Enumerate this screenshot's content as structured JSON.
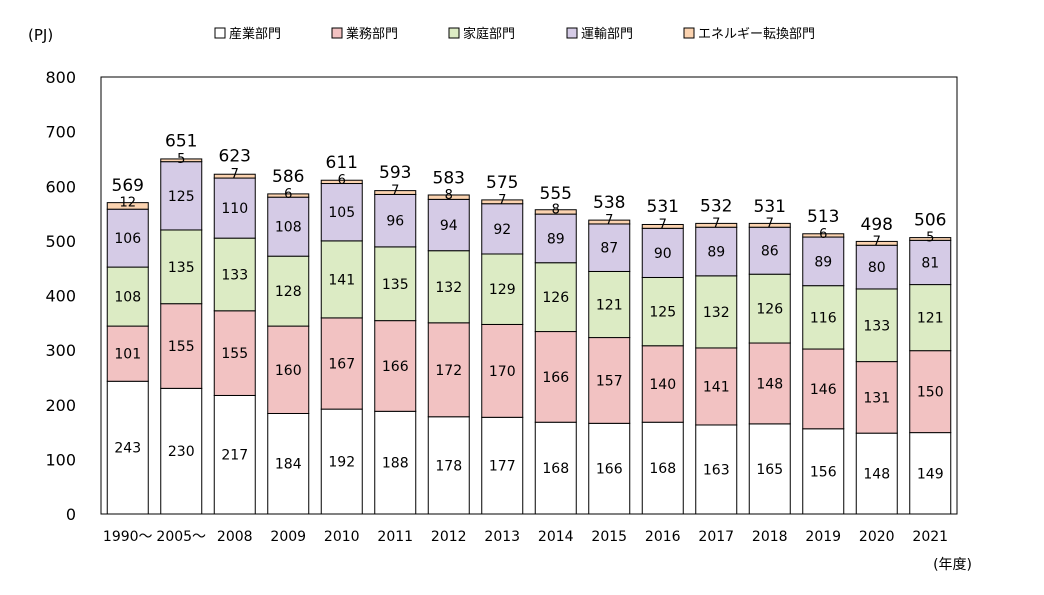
{
  "chart_data": {
    "type": "bar",
    "stacked": true,
    "unit_label": "(PJ)",
    "x_unit_label": "(年度)",
    "categories": [
      "1990",
      "2005",
      "2008",
      "2009",
      "2010",
      "2011",
      "2012",
      "2013",
      "2014",
      "2015",
      "2016",
      "2017",
      "2018",
      "2019",
      "2020",
      "2021"
    ],
    "category_labels": [
      "1990～",
      "2005～",
      "2008",
      "2009",
      "2010",
      "2011",
      "2012",
      "2013",
      "2014",
      "2015",
      "2016",
      "2017",
      "2018",
      "2019",
      "2020",
      "2021"
    ],
    "ylim": [
      0,
      800
    ],
    "yticks": [
      0,
      100,
      200,
      300,
      400,
      500,
      600,
      700,
      800
    ],
    "grid": false,
    "legend_position": "top",
    "series": [
      {
        "name": "産業部門",
        "color": "#ffffff",
        "values": [
          243,
          230,
          217,
          184,
          192,
          188,
          178,
          177,
          168,
          166,
          168,
          163,
          165,
          156,
          148,
          149
        ]
      },
      {
        "name": "業務部門",
        "color": "#f2c2c2",
        "values": [
          101,
          155,
          155,
          160,
          167,
          166,
          172,
          170,
          166,
          157,
          140,
          141,
          148,
          146,
          131,
          150
        ]
      },
      {
        "name": "家庭部門",
        "color": "#dcebc4",
        "values": [
          108,
          135,
          133,
          128,
          141,
          135,
          132,
          129,
          126,
          121,
          125,
          132,
          126,
          116,
          133,
          121
        ]
      },
      {
        "name": "運輸部門",
        "color": "#d5cbe6",
        "values": [
          106,
          125,
          110,
          108,
          105,
          96,
          94,
          92,
          89,
          87,
          90,
          89,
          86,
          89,
          80,
          81
        ]
      },
      {
        "name": "エネルギー転換部門",
        "color": "#fbd3b0",
        "values": [
          12,
          5,
          7,
          6,
          6,
          7,
          8,
          7,
          8,
          7,
          7,
          7,
          7,
          6,
          7,
          5
        ]
      }
    ],
    "totals": [
      569,
      651,
      623,
      586,
      611,
      593,
      583,
      575,
      555,
      538,
      531,
      532,
      531,
      513,
      498,
      506
    ]
  }
}
